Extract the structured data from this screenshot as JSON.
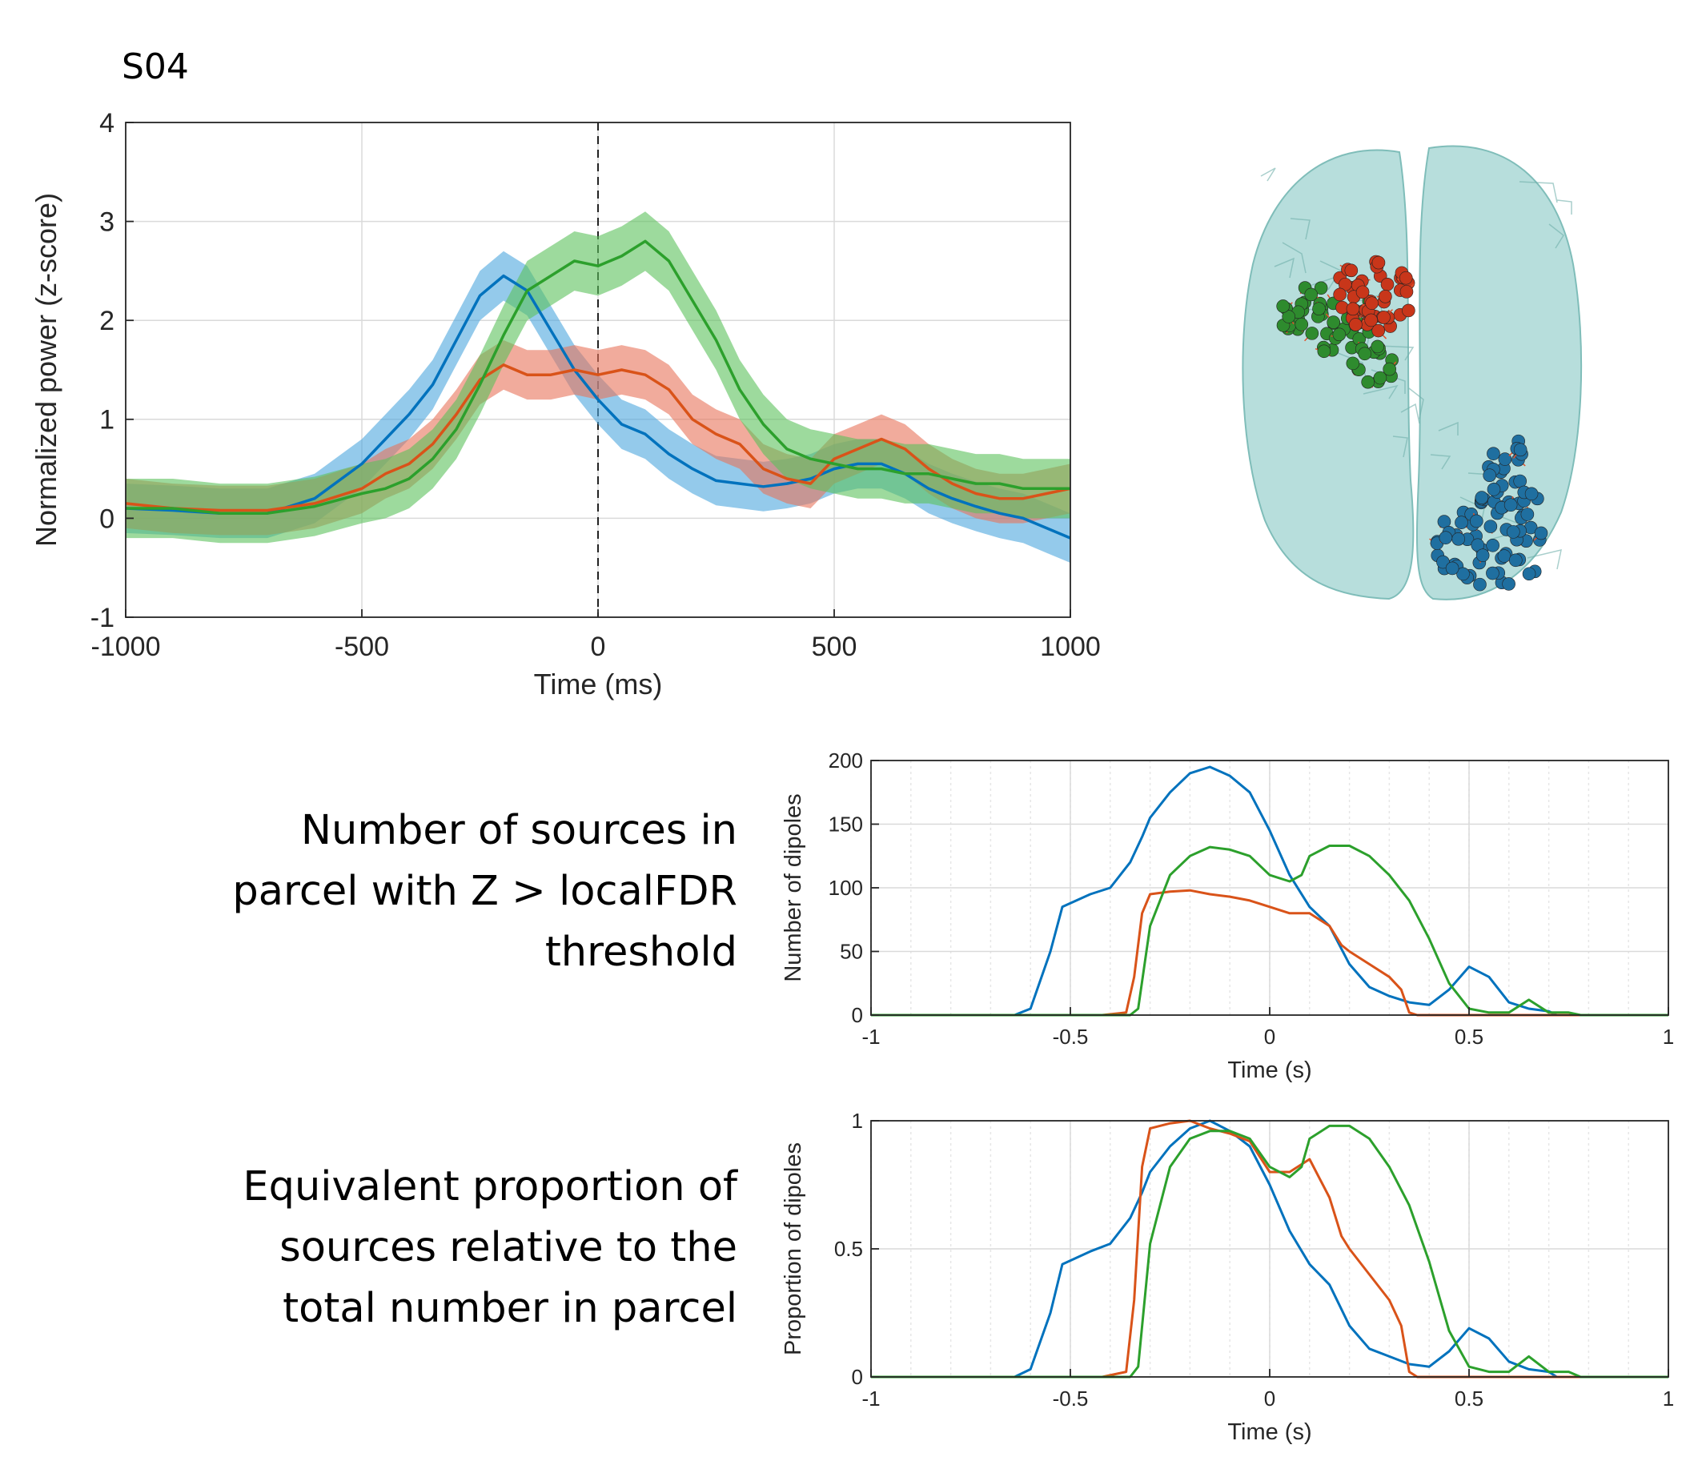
{
  "subject_label": "S04",
  "captions": {
    "number": [
      "Number of sources in",
      "parcel with Z > localFDR",
      "threshold"
    ],
    "proportion": [
      "Equivalent proportion of",
      "sources relative to the",
      "total number in parcel"
    ]
  },
  "colors": {
    "blue": "#0072BD",
    "red": "#D95319",
    "green": "#2CA02C",
    "blue_fill": "#4DA6DE",
    "red_fill": "#E8735A",
    "green_fill": "#5CC25C",
    "brain": "#9FD3D0",
    "grid": "#DADADA"
  },
  "brain_figure": {
    "description_icon": "brain-glass-render-icon"
  },
  "chart_data": [
    {
      "type": "line",
      "title": "",
      "xlabel": "Time (ms)",
      "ylabel": "Normalized power (z-score)",
      "xlim": [
        -1000,
        1000
      ],
      "ylim": [
        -1,
        4
      ],
      "xticks": [
        -1000,
        -500,
        0,
        500,
        1000
      ],
      "yticks": [
        -1,
        0,
        1,
        2,
        3,
        4
      ],
      "grid": true,
      "vline_dashed_at": 0,
      "shaded_error_bands": true,
      "series": [
        {
          "color": "blue",
          "x": [
            -1000,
            -900,
            -800,
            -700,
            -600,
            -500,
            -450,
            -400,
            -350,
            -300,
            -250,
            -200,
            -150,
            -100,
            -50,
            0,
            50,
            100,
            150,
            200,
            250,
            300,
            350,
            400,
            450,
            500,
            550,
            600,
            650,
            700,
            750,
            800,
            850,
            900,
            950,
            1000
          ],
          "y": [
            0.1,
            0.08,
            0.05,
            0.05,
            0.2,
            0.55,
            0.8,
            1.05,
            1.35,
            1.8,
            2.25,
            2.45,
            2.3,
            1.9,
            1.5,
            1.2,
            0.95,
            0.85,
            0.65,
            0.5,
            0.38,
            0.35,
            0.32,
            0.35,
            0.4,
            0.5,
            0.55,
            0.55,
            0.45,
            0.3,
            0.2,
            0.12,
            0.05,
            0.0,
            -0.1,
            -0.2
          ],
          "band": 0.25
        },
        {
          "color": "red",
          "x": [
            -1000,
            -900,
            -800,
            -700,
            -600,
            -500,
            -450,
            -400,
            -350,
            -300,
            -250,
            -200,
            -150,
            -100,
            -50,
            0,
            50,
            100,
            150,
            200,
            250,
            300,
            350,
            400,
            450,
            500,
            550,
            600,
            650,
            700,
            750,
            800,
            850,
            900,
            950,
            1000
          ],
          "y": [
            0.15,
            0.1,
            0.08,
            0.08,
            0.15,
            0.3,
            0.45,
            0.55,
            0.75,
            1.05,
            1.4,
            1.55,
            1.45,
            1.45,
            1.5,
            1.45,
            1.5,
            1.45,
            1.3,
            1.0,
            0.85,
            0.75,
            0.5,
            0.4,
            0.35,
            0.6,
            0.7,
            0.8,
            0.7,
            0.5,
            0.35,
            0.25,
            0.2,
            0.2,
            0.25,
            0.3
          ],
          "band": 0.25
        },
        {
          "color": "green",
          "x": [
            -1000,
            -900,
            -800,
            -700,
            -600,
            -500,
            -450,
            -400,
            -350,
            -300,
            -250,
            -200,
            -150,
            -100,
            -50,
            0,
            50,
            100,
            150,
            200,
            250,
            300,
            350,
            400,
            450,
            500,
            550,
            600,
            650,
            700,
            750,
            800,
            850,
            900,
            950,
            1000
          ],
          "y": [
            0.1,
            0.1,
            0.05,
            0.05,
            0.12,
            0.25,
            0.3,
            0.4,
            0.6,
            0.9,
            1.35,
            1.85,
            2.3,
            2.45,
            2.6,
            2.55,
            2.65,
            2.8,
            2.6,
            2.2,
            1.8,
            1.3,
            0.95,
            0.7,
            0.6,
            0.55,
            0.5,
            0.5,
            0.45,
            0.45,
            0.4,
            0.35,
            0.35,
            0.3,
            0.3,
            0.3
          ],
          "band": 0.3
        }
      ]
    },
    {
      "type": "line",
      "title": "",
      "xlabel": "Time (s)",
      "ylabel": "Number of dipoles",
      "xlim": [
        -1,
        1
      ],
      "ylim": [
        0,
        200
      ],
      "xticks": [
        -1,
        -0.5,
        0,
        0.5,
        1
      ],
      "yticks": [
        0,
        50,
        100,
        150,
        200
      ],
      "grid": true,
      "series": [
        {
          "color": "blue",
          "x": [
            -1,
            -0.64,
            -0.6,
            -0.55,
            -0.52,
            -0.45,
            -0.4,
            -0.35,
            -0.32,
            -0.3,
            -0.25,
            -0.2,
            -0.15,
            -0.1,
            -0.05,
            0,
            0.05,
            0.1,
            0.15,
            0.2,
            0.25,
            0.3,
            0.35,
            0.4,
            0.45,
            0.5,
            0.55,
            0.6,
            0.65,
            0.7,
            0.72,
            1
          ],
          "y": [
            0,
            0,
            5,
            50,
            85,
            95,
            100,
            120,
            140,
            155,
            175,
            190,
            195,
            188,
            175,
            145,
            110,
            85,
            70,
            40,
            22,
            15,
            10,
            8,
            20,
            38,
            30,
            10,
            5,
            3,
            0,
            0
          ]
        },
        {
          "color": "red",
          "x": [
            -1,
            -0.42,
            -0.36,
            -0.34,
            -0.32,
            -0.3,
            -0.25,
            -0.2,
            -0.15,
            -0.1,
            -0.05,
            0,
            0.05,
            0.1,
            0.15,
            0.18,
            0.2,
            0.25,
            0.3,
            0.33,
            0.35,
            0.37,
            1
          ],
          "y": [
            0,
            0,
            2,
            30,
            80,
            95,
            97,
            98,
            95,
            93,
            90,
            85,
            80,
            80,
            70,
            55,
            50,
            40,
            30,
            20,
            2,
            0,
            0
          ]
        },
        {
          "color": "green",
          "x": [
            -1,
            -0.35,
            -0.33,
            -0.3,
            -0.25,
            -0.2,
            -0.15,
            -0.1,
            -0.05,
            0,
            0.05,
            0.08,
            0.1,
            0.15,
            0.2,
            0.25,
            0.3,
            0.35,
            0.4,
            0.45,
            0.5,
            0.55,
            0.6,
            0.65,
            0.7,
            0.75,
            0.78,
            1
          ],
          "y": [
            0,
            0,
            5,
            70,
            110,
            125,
            132,
            130,
            125,
            110,
            105,
            110,
            125,
            133,
            133,
            125,
            110,
            90,
            60,
            25,
            5,
            2,
            2,
            12,
            2,
            2,
            0,
            0
          ]
        }
      ]
    },
    {
      "type": "line",
      "title": "",
      "xlabel": "Time (s)",
      "ylabel": "Proportion of dipoles",
      "xlim": [
        -1,
        1
      ],
      "ylim": [
        0,
        1
      ],
      "xticks": [
        -1,
        -0.5,
        0,
        0.5,
        1
      ],
      "yticks": [
        0,
        0.5,
        1
      ],
      "grid": true,
      "series": [
        {
          "color": "blue",
          "x": [
            -1,
            -0.64,
            -0.6,
            -0.55,
            -0.52,
            -0.45,
            -0.4,
            -0.35,
            -0.32,
            -0.3,
            -0.25,
            -0.2,
            -0.15,
            -0.1,
            -0.05,
            0,
            0.05,
            0.1,
            0.15,
            0.2,
            0.25,
            0.3,
            0.35,
            0.4,
            0.45,
            0.5,
            0.55,
            0.6,
            0.65,
            0.7,
            0.72,
            1
          ],
          "y": [
            0,
            0,
            0.03,
            0.25,
            0.44,
            0.49,
            0.52,
            0.62,
            0.72,
            0.8,
            0.9,
            0.97,
            1.0,
            0.96,
            0.9,
            0.75,
            0.57,
            0.44,
            0.36,
            0.2,
            0.11,
            0.08,
            0.05,
            0.04,
            0.1,
            0.19,
            0.15,
            0.06,
            0.03,
            0.02,
            0,
            0
          ]
        },
        {
          "color": "red",
          "x": [
            -1,
            -0.42,
            -0.36,
            -0.34,
            -0.32,
            -0.3,
            -0.25,
            -0.2,
            -0.15,
            -0.1,
            -0.05,
            0,
            0.05,
            0.1,
            0.15,
            0.18,
            0.2,
            0.25,
            0.3,
            0.33,
            0.35,
            0.37,
            1
          ],
          "y": [
            0,
            0,
            0.02,
            0.3,
            0.82,
            0.97,
            0.99,
            1.0,
            0.97,
            0.95,
            0.92,
            0.8,
            0.8,
            0.85,
            0.7,
            0.55,
            0.5,
            0.4,
            0.3,
            0.2,
            0.02,
            0,
            0
          ]
        },
        {
          "color": "green",
          "x": [
            -1,
            -0.35,
            -0.33,
            -0.3,
            -0.25,
            -0.2,
            -0.15,
            -0.1,
            -0.05,
            0,
            0.05,
            0.08,
            0.1,
            0.15,
            0.2,
            0.25,
            0.3,
            0.35,
            0.4,
            0.45,
            0.5,
            0.55,
            0.6,
            0.65,
            0.7,
            0.75,
            0.78,
            1
          ],
          "y": [
            0,
            0,
            0.04,
            0.52,
            0.82,
            0.93,
            0.96,
            0.96,
            0.93,
            0.82,
            0.78,
            0.82,
            0.93,
            0.98,
            0.98,
            0.93,
            0.82,
            0.67,
            0.45,
            0.18,
            0.04,
            0.02,
            0.02,
            0.08,
            0.02,
            0.02,
            0,
            0
          ]
        }
      ]
    }
  ]
}
